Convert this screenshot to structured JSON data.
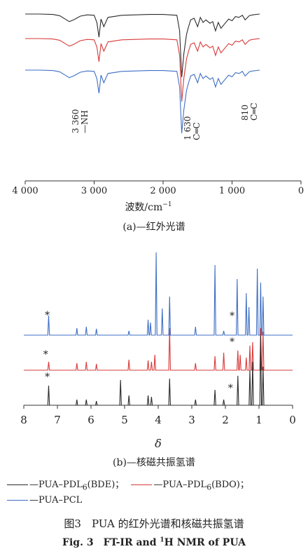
{
  "colors": {
    "black": "#2b2b2b",
    "red": "#d93a3a",
    "blue": "#3f6fc4"
  },
  "chart_data": [
    {
      "type": "line",
      "caption": "(a)—红外光谱",
      "xlabel": "波数/cm",
      "xlabel_sup": "−1",
      "xlim": [
        4000,
        0
      ],
      "xticks": [
        "4 000",
        "3 000",
        "2 000",
        "1 000",
        "0"
      ],
      "tick_values": [
        4000,
        3000,
        2000,
        1000,
        0
      ],
      "series": [
        {
          "name": "—PUA–PDL6(BDE)",
          "color": "#2b2b2b",
          "offset": 20,
          "x": [
            600,
            700,
            750,
            810,
            850,
            900,
            950,
            1000,
            1050,
            1100,
            1160,
            1200,
            1240,
            1280,
            1320,
            1380,
            1420,
            1460,
            1500,
            1550,
            1600,
            1630,
            1660,
            1700,
            1730,
            1760,
            1800,
            1900,
            2000,
            2200,
            2400,
            2600,
            2800,
            2860,
            2900,
            2930,
            2960,
            3000,
            3100,
            3200,
            3300,
            3360,
            3420,
            3500,
            3600,
            3800,
            4000
          ],
          "y": [
            0,
            -2,
            -4,
            -14,
            -3,
            -8,
            -6,
            -16,
            -12,
            -22,
            -34,
            -20,
            -40,
            -18,
            -22,
            -14,
            -20,
            -8,
            -30,
            -10,
            -14,
            -30,
            -48,
            -95,
            -150,
            -40,
            -3,
            -2,
            -1,
            -1,
            -2,
            -3,
            -8,
            -30,
            -12,
            -55,
            -20,
            -3,
            -2,
            -5,
            -14,
            -18,
            -12,
            -4,
            -1,
            0,
            0
          ]
        },
        {
          "name": "—PUA–PDL6(BDO)",
          "color": "#d93a3a",
          "offset": 55,
          "x": [
            600,
            700,
            750,
            810,
            850,
            900,
            950,
            1000,
            1050,
            1100,
            1160,
            1200,
            1240,
            1280,
            1320,
            1380,
            1420,
            1460,
            1500,
            1550,
            1600,
            1630,
            1660,
            1700,
            1730,
            1760,
            1800,
            1900,
            2000,
            2200,
            2400,
            2600,
            2800,
            2860,
            2900,
            2930,
            2960,
            3000,
            3100,
            3200,
            3300,
            3360,
            3420,
            3500,
            3600,
            3800,
            4000
          ],
          "y": [
            0,
            -2,
            -4,
            -14,
            -3,
            -8,
            -6,
            -16,
            -12,
            -22,
            -34,
            -20,
            -40,
            -18,
            -22,
            -14,
            -20,
            -8,
            -30,
            -10,
            -14,
            -30,
            -48,
            -95,
            -150,
            -40,
            -3,
            -2,
            -1,
            -1,
            -2,
            -3,
            -8,
            -30,
            -12,
            -55,
            -20,
            -3,
            -2,
            -5,
            -14,
            -18,
            -12,
            -4,
            -1,
            0,
            0
          ]
        },
        {
          "name": "—PUA–PCL",
          "color": "#3f6fc4",
          "offset": 100,
          "x": [
            600,
            700,
            750,
            810,
            850,
            900,
            950,
            1000,
            1050,
            1100,
            1160,
            1200,
            1240,
            1280,
            1320,
            1380,
            1420,
            1460,
            1500,
            1550,
            1600,
            1630,
            1660,
            1700,
            1730,
            1760,
            1800,
            1900,
            2000,
            2200,
            2400,
            2600,
            2800,
            2860,
            2900,
            2930,
            2960,
            3000,
            3100,
            3200,
            3300,
            3360,
            3420,
            3500,
            3600,
            3800,
            4000
          ],
          "y": [
            0,
            -2,
            -4,
            -14,
            -3,
            -8,
            -6,
            -16,
            -12,
            -22,
            -34,
            -20,
            -40,
            -18,
            -22,
            -14,
            -20,
            -8,
            -30,
            -10,
            -14,
            -30,
            -48,
            -95,
            -150,
            -40,
            -3,
            -2,
            -1,
            -1,
            -2,
            -3,
            -8,
            -30,
            -12,
            -55,
            -20,
            -3,
            -2,
            -5,
            -14,
            -18,
            -12,
            -4,
            -1,
            0,
            0
          ]
        }
      ],
      "annotations": [
        {
          "line1": "3 360",
          "line2": "—NH",
          "x": 3360
        },
        {
          "line1": "1 630",
          "line2": "C═C",
          "x": 1630
        },
        {
          "line1": "810",
          "line2": "C═C",
          "x": 810
        }
      ]
    },
    {
      "type": "line",
      "caption": "(b)—核磁共振氢谱",
      "xlabel": "δ",
      "xlim": [
        8,
        0
      ],
      "xticks": [
        "8",
        "7",
        "6",
        "5",
        "4",
        "3",
        "2",
        "1",
        "0"
      ],
      "tick_values": [
        8,
        7,
        6,
        5,
        4,
        3,
        2,
        1,
        0
      ],
      "star": "*",
      "series": [
        {
          "name": "—PUA–PCL",
          "color": "#3f6fc4",
          "offset": 478,
          "peaks": [
            [
              7.26,
              28
            ],
            [
              6.42,
              10
            ],
            [
              6.14,
              12
            ],
            [
              5.84,
              9
            ],
            [
              4.87,
              6
            ],
            [
              4.3,
              22
            ],
            [
              4.23,
              18
            ],
            [
              4.06,
              118
            ],
            [
              3.88,
              38
            ],
            [
              3.66,
              55
            ],
            [
              2.89,
              12
            ],
            [
              2.31,
              100
            ],
            [
              2.05,
              6
            ],
            [
              1.65,
              80
            ],
            [
              1.38,
              60
            ],
            [
              1.3,
              40
            ],
            [
              1.05,
              95
            ],
            [
              0.95,
              75
            ],
            [
              0.88,
              55
            ]
          ],
          "stars": [
            [
              7.3,
              454
            ],
            [
              1.8,
              455
            ]
          ]
        },
        {
          "name": "—PUA–PDL6(BDO)",
          "color": "#d93a3a",
          "offset": 528,
          "peaks": [
            [
              7.26,
              12
            ],
            [
              6.42,
              10
            ],
            [
              6.14,
              12
            ],
            [
              5.84,
              9
            ],
            [
              4.87,
              15
            ],
            [
              4.3,
              14
            ],
            [
              4.2,
              12
            ],
            [
              4.1,
              22
            ],
            [
              3.66,
              60
            ],
            [
              2.89,
              10
            ],
            [
              2.31,
              20
            ],
            [
              2.05,
              25
            ],
            [
              1.63,
              28
            ],
            [
              1.56,
              22
            ],
            [
              1.38,
              18
            ],
            [
              1.27,
              35
            ],
            [
              1.19,
              40
            ],
            [
              0.95,
              60
            ],
            [
              0.88,
              55
            ]
          ],
          "stars": [
            [
              7.35,
              510
            ],
            [
              1.8,
              492
            ]
          ]
        },
        {
          "name": "—PUA–PDL6(BDE)",
          "color": "#2b2b2b",
          "offset": 578,
          "peaks": [
            [
              7.26,
              28
            ],
            [
              6.42,
              8
            ],
            [
              6.14,
              8
            ],
            [
              5.84,
              6
            ],
            [
              5.12,
              36
            ],
            [
              4.87,
              14
            ],
            [
              4.3,
              14
            ],
            [
              4.2,
              12
            ],
            [
              3.66,
              38
            ],
            [
              2.89,
              8
            ],
            [
              2.31,
              22
            ],
            [
              2.05,
              8
            ],
            [
              1.63,
              42
            ],
            [
              1.27,
              50
            ],
            [
              1.19,
              62
            ],
            [
              0.95,
              100
            ],
            [
              0.88,
              55
            ]
          ],
          "stars": [
            [
              7.3,
              542
            ],
            [
              1.85,
              558
            ]
          ]
        }
      ]
    }
  ],
  "legend": {
    "row1": [
      {
        "label": "—PUA–PDL",
        "sub": "6",
        "tail": "(BDE)；",
        "color": "#2b2b2b"
      },
      {
        "label": "—PUA–PDL",
        "sub": "6",
        "tail": "(BDO)；",
        "color": "#d93a3a"
      }
    ],
    "row2": [
      {
        "label": "—PUA–PCL",
        "color": "#3f6fc4"
      }
    ]
  },
  "figure": {
    "caption_cn": "图3　PUA 的红外光谱和核磁共振氢谱",
    "caption_en_pre": "Fig. 3　FT-IR and ",
    "caption_en_sup": "1",
    "caption_en_post": "H NMR of PUA"
  }
}
